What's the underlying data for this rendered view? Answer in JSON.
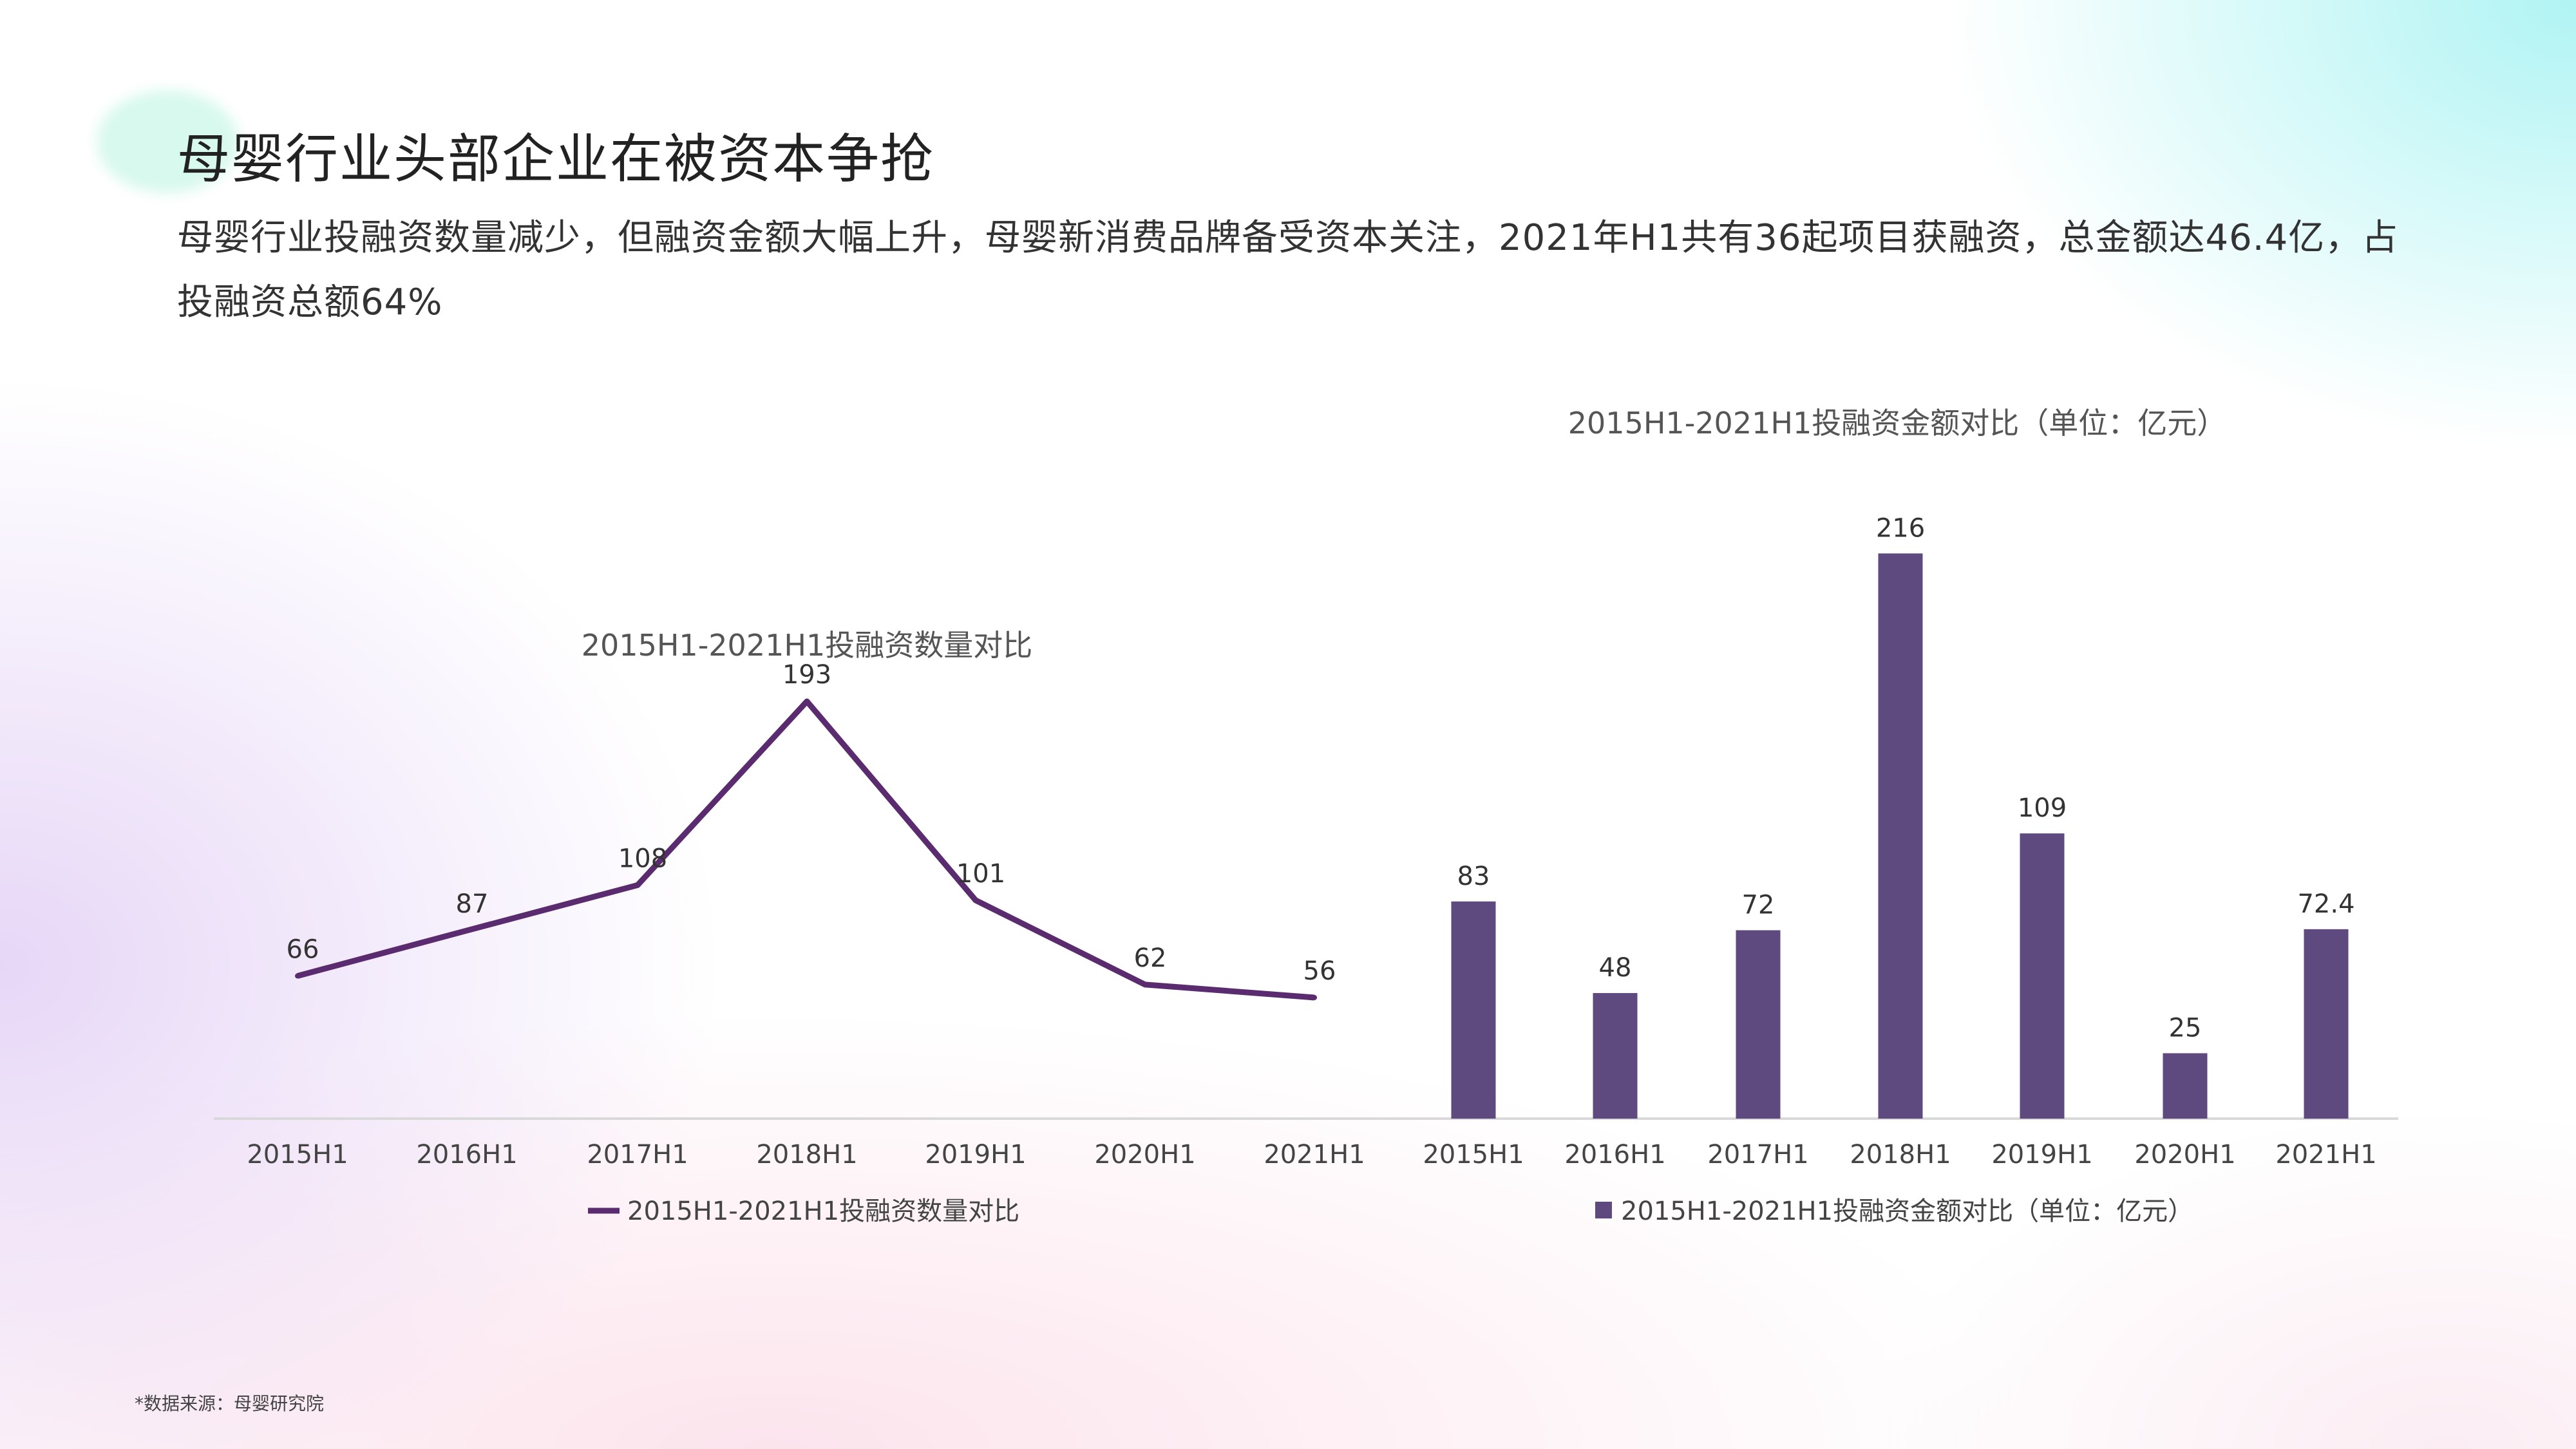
{
  "header": {
    "title": "母婴行业头部企业在被资本争抢",
    "subtitle": "母婴行业投融资数量减少，但融资金额大幅上升，母婴新消费品牌备受资本关注，2021年H1共有36起项目获融资，总金额达46.4亿，占投融资总额64%"
  },
  "footnote": "*数据来源：母婴研究院",
  "chart_data": [
    {
      "type": "line",
      "title": "2015H1-2021H1投融资数量对比",
      "categories": [
        "2015H1",
        "2016H1",
        "2017H1",
        "2018H1",
        "2019H1",
        "2020H1",
        "2021H1"
      ],
      "series": [
        {
          "name": "2015H1-2021H1投融资数量对比",
          "values": [
            66,
            87,
            108,
            193,
            101,
            62,
            56
          ],
          "color": "#5a2b6e"
        }
      ],
      "legend": "bottom",
      "ylim": [
        0,
        210
      ],
      "grid": false
    },
    {
      "type": "bar",
      "title": "2015H1-2021H1投融资金额对比（单位：亿元）",
      "categories": [
        "2015H1",
        "2016H1",
        "2017H1",
        "2018H1",
        "2019H1",
        "2020H1",
        "2021H1"
      ],
      "series": [
        {
          "name": "2015H1-2021H1投融资金额对比（单位：亿元）",
          "values": [
            83,
            48,
            72,
            216,
            109,
            25,
            72.4
          ],
          "color": "#5e4a7e"
        }
      ],
      "legend": "bottom",
      "ylim": [
        0,
        220
      ],
      "grid": false
    }
  ]
}
